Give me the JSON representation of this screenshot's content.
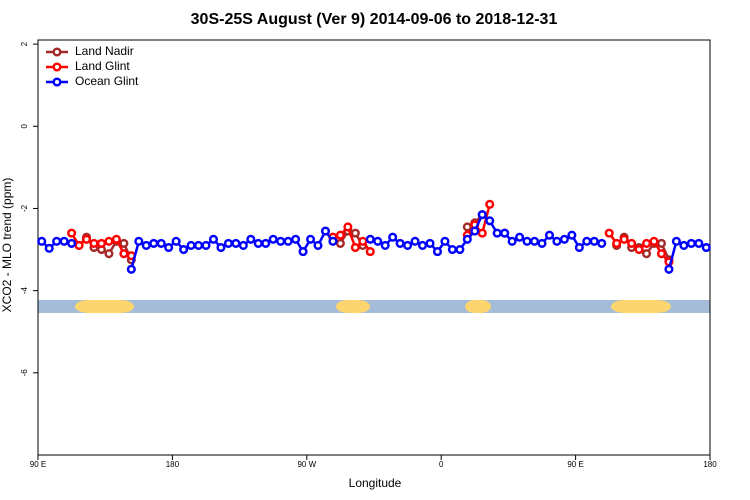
{
  "chart_data": {
    "type": "line",
    "title": "30S-25S August (Ver 9)   2014-09-06 to 2018-12-31",
    "x_label": "Longitude",
    "y_label": "XCO2 - MLO trend (ppm)",
    "x": [
      92.5,
      97.5,
      102.5,
      107.5,
      112.5,
      117.5,
      122.5,
      127.5,
      132.5,
      137.5,
      142.5,
      147.5,
      152.5,
      157.5,
      162.5,
      167.5,
      172.5,
      177.5,
      182.5,
      187.5,
      192.5,
      197.5,
      202.5,
      207.5,
      212.5,
      217.5,
      222.5,
      227.5,
      232.5,
      237.5,
      242.5,
      247.5,
      252.5,
      257.5,
      262.5,
      267.5,
      272.5,
      277.5,
      282.5,
      287.5,
      292.5,
      297.5,
      302.5,
      307.5,
      312.5,
      317.5,
      322.5,
      327.5,
      332.5,
      337.5,
      342.5,
      347.5,
      352.5,
      357.5,
      362.5,
      367.5,
      372.5,
      377.5,
      382.5,
      387.5,
      392.5,
      397.5,
      402.5,
      407.5,
      412.5,
      417.5,
      422.5,
      427.5,
      432.5,
      437.5,
      442.5,
      447.5,
      452.5,
      457.5,
      462.5,
      467.5,
      472.5,
      477.5,
      482.5,
      487.5,
      492.5,
      497.5,
      502.5,
      507.5,
      512.5,
      517.5,
      522.5,
      527.5,
      532.5,
      537.5
    ],
    "series": [
      {
        "name": "Land Nadir",
        "color": "#a52a2a",
        "values": [
          null,
          null,
          null,
          null,
          null,
          -2.9,
          -2.7,
          -2.95,
          -3.0,
          -3.1,
          -2.8,
          -2.85,
          -3.25,
          null,
          null,
          null,
          null,
          null,
          null,
          null,
          null,
          null,
          null,
          null,
          null,
          null,
          null,
          null,
          null,
          null,
          null,
          null,
          null,
          null,
          null,
          null,
          null,
          null,
          null,
          -2.7,
          -2.85,
          -2.55,
          -2.6,
          -2.9,
          null,
          null,
          null,
          null,
          null,
          null,
          null,
          null,
          null,
          null,
          null,
          null,
          null,
          -2.45,
          -2.35,
          -2.15,
          null,
          null,
          null,
          null,
          null,
          null,
          null,
          null,
          null,
          null,
          null,
          null,
          null,
          null,
          null,
          null,
          null,
          -2.9,
          -2.7,
          -2.95,
          -2.95,
          -3.1,
          -2.85,
          -2.85,
          -3.25,
          null,
          null,
          null,
          null,
          null
        ]
      },
      {
        "name": "Land Glint",
        "color": "#ff0000",
        "values": [
          null,
          null,
          null,
          null,
          -2.6,
          -2.9,
          -2.75,
          -2.85,
          -2.85,
          -2.8,
          -2.75,
          -3.1,
          -3.15,
          null,
          null,
          null,
          null,
          null,
          null,
          null,
          null,
          null,
          null,
          null,
          null,
          null,
          null,
          null,
          null,
          null,
          null,
          null,
          null,
          null,
          null,
          null,
          null,
          null,
          null,
          -2.7,
          -2.65,
          -2.45,
          -2.95,
          -2.8,
          -3.05,
          null,
          null,
          null,
          null,
          null,
          null,
          null,
          null,
          null,
          null,
          null,
          null,
          -2.65,
          -2.4,
          -2.6,
          -1.9,
          null,
          -2.6,
          null,
          null,
          null,
          null,
          null,
          null,
          null,
          null,
          null,
          null,
          null,
          null,
          null,
          -2.6,
          -2.85,
          -2.75,
          -2.85,
          -3.0,
          -2.85,
          -2.8,
          -3.1,
          -3.3,
          null,
          null,
          null,
          null,
          null
        ]
      },
      {
        "name": "Ocean Glint",
        "color": "#0000ff",
        "values": [
          -2.8,
          -2.97,
          -2.8,
          -2.8,
          -2.85,
          null,
          null,
          null,
          null,
          null,
          null,
          null,
          -3.48,
          -2.8,
          -2.9,
          -2.85,
          -2.85,
          -2.95,
          -2.8,
          -3.0,
          -2.9,
          -2.9,
          -2.9,
          -2.75,
          -2.95,
          -2.85,
          -2.85,
          -2.9,
          -2.75,
          -2.85,
          -2.85,
          -2.75,
          -2.8,
          -2.8,
          -2.75,
          -3.05,
          -2.75,
          -2.9,
          -2.55,
          -2.8,
          null,
          null,
          null,
          null,
          -2.75,
          -2.8,
          -2.9,
          -2.7,
          -2.85,
          -2.9,
          -2.8,
          -2.9,
          -2.85,
          -3.05,
          -2.8,
          -3.0,
          -3.0,
          -2.75,
          -2.55,
          -2.15,
          -2.3,
          -2.6,
          -2.6,
          -2.8,
          -2.7,
          -2.8,
          -2.8,
          -2.85,
          -2.65,
          -2.8,
          -2.75,
          -2.65,
          -2.95,
          -2.8,
          -2.8,
          -2.85,
          null,
          null,
          null,
          null,
          null,
          null,
          null,
          null,
          -3.48,
          -2.8,
          -2.9,
          -2.85,
          -2.85,
          -2.95
        ]
      }
    ],
    "xlim": [
      90,
      540
    ],
    "xticks": [
      {
        "value": 90,
        "label": "90 E"
      },
      180,
      {
        "value": 270,
        "label": "90 W"
      },
      {
        "value": 360,
        "label": "0"
      },
      {
        "value": 450,
        "label": "90 E"
      },
      {
        "value": 540,
        "label": "180"
      }
    ],
    "ylim": [
      -8,
      2.1
    ],
    "yticks": [
      -6,
      -4,
      -2,
      0,
      2
    ],
    "legend": "top-left"
  }
}
